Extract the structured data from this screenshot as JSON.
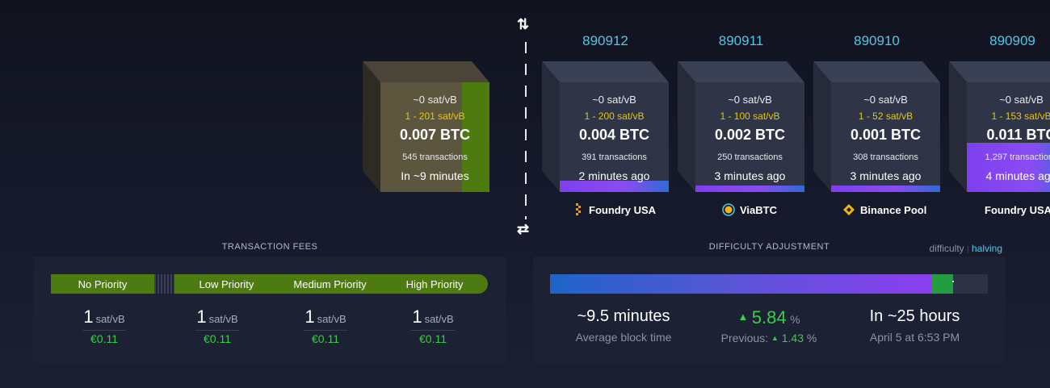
{
  "mempool_block": {
    "median_fee": "~0 sat/vB",
    "fee_range": "1 - 201 sat/vB",
    "total": "0.007 BTC",
    "tx_count": "545 transactions",
    "eta": "In ~9 minutes",
    "fill_fraction": 0.25
  },
  "blocks": [
    {
      "height": "890912",
      "median_fee": "~0 sat/vB",
      "fee_range": "1 - 200 sat/vB",
      "total": "0.004 BTC",
      "tx_count": "391 transactions",
      "time": "2 minutes ago",
      "miner": "Foundry USA",
      "miner_icon": "foundry-icon",
      "fill_fraction": 0.1
    },
    {
      "height": "890911",
      "median_fee": "~0 sat/vB",
      "fee_range": "1 - 100 sat/vB",
      "total": "0.002 BTC",
      "tx_count": "250 transactions",
      "time": "3 minutes ago",
      "miner": "ViaBTC",
      "miner_icon": "viabtc-icon",
      "fill_fraction": 0.06
    },
    {
      "height": "890910",
      "median_fee": "~0 sat/vB",
      "fee_range": "1 - 52 sat/vB",
      "total": "0.001 BTC",
      "tx_count": "308 transactions",
      "time": "3 minutes ago",
      "miner": "Binance Pool",
      "miner_icon": "binance-icon",
      "fill_fraction": 0.06
    },
    {
      "height": "890909",
      "median_fee": "~0 sat/vB",
      "fee_range": "1 - 153 sat/vB",
      "total": "0.011 BTC",
      "tx_count": "1,297 transactions",
      "time": "4 minutes ago",
      "miner": "Foundry USA",
      "miner_icon": "foundry-icon",
      "fill_fraction": 0.45
    }
  ],
  "transaction_fees": {
    "title": "TRANSACTION FEES",
    "priorities": [
      "No Priority",
      "Low Priority",
      "Medium Priority",
      "High Priority"
    ],
    "values": [
      {
        "value": "1",
        "unit": "sat/vB",
        "fiat": "€0.11"
      },
      {
        "value": "1",
        "unit": "sat/vB",
        "fiat": "€0.11"
      },
      {
        "value": "1",
        "unit": "sat/vB",
        "fiat": "€0.11"
      },
      {
        "value": "1",
        "unit": "sat/vB",
        "fiat": "€0.11"
      }
    ]
  },
  "difficulty": {
    "title": "DIFFICULTY ADJUSTMENT",
    "toggle_difficulty": "difficulty",
    "toggle_separator": "|",
    "toggle_halving": "halving",
    "progress_fraction": 0.87,
    "average_block_time": "~9.5 minutes",
    "average_block_time_label": "Average block time",
    "change_arrow": "▲",
    "change": "5.84",
    "change_unit": "%",
    "previous_label": "Previous:",
    "previous_change": "1.43",
    "previous_unit": "%",
    "eta": "In ~25 hours",
    "eta_date": "April 5 at 6:53 PM"
  },
  "colors": {
    "accent_blue": "#4fc7e6",
    "fee_range_yellow": "#e6c716",
    "positive_green": "#3bcc49",
    "priority_green": "#4d7b0f"
  }
}
